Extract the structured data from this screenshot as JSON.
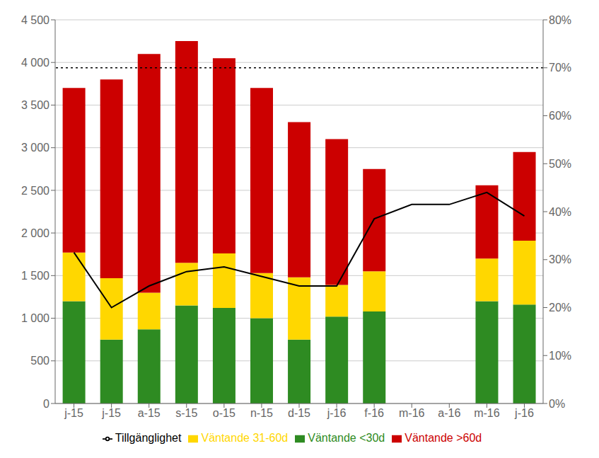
{
  "chart_data": {
    "type": "bar",
    "stacked": true,
    "categories": [
      "j-15",
      "j-15",
      "a-15",
      "s-15",
      "o-15",
      "n-15",
      "d-15",
      "j-16",
      "f-16",
      "m-16",
      "a-16",
      "m-16",
      "j-16"
    ],
    "series": [
      {
        "name": "Väntande <30d",
        "color": "#2E8B22",
        "values": [
          1200,
          750,
          870,
          1150,
          1120,
          1000,
          750,
          1020,
          1080,
          0,
          0,
          1200,
          1160
        ]
      },
      {
        "name": "Väntande 31-60d",
        "color": "#FFD700",
        "values": [
          570,
          720,
          430,
          500,
          640,
          530,
          730,
          370,
          470,
          0,
          0,
          500,
          750
        ]
      },
      {
        "name": "Väntande >60d",
        "color": "#CC0000",
        "values": [
          1930,
          2330,
          2800,
          2600,
          2290,
          2170,
          1820,
          1710,
          1200,
          0,
          0,
          860,
          1040
        ]
      },
      {
        "name": "Tillgänglighet",
        "type": "line",
        "axis": "y2",
        "color": "#000000",
        "values": [
          0.315,
          0.2,
          0.245,
          0.275,
          0.285,
          0.265,
          0.245,
          0.245,
          0.385,
          0.415,
          0.415,
          0.44,
          0.391
        ]
      }
    ],
    "ylim": [
      0,
      4500
    ],
    "yticks": [
      0,
      500,
      {
        "value": 1000,
        "label": "1 000"
      },
      {
        "value": 1500,
        "label": "1 500"
      },
      {
        "value": 2000,
        "label": "2 000"
      },
      {
        "value": 2500,
        "label": "2 500"
      },
      {
        "value": 3000,
        "label": "3 000"
      },
      {
        "value": 3500,
        "label": "3 500"
      },
      {
        "value": 4000,
        "label": "4 000"
      },
      {
        "value": 4500,
        "label": "4 500"
      }
    ],
    "y2lim": [
      0.0,
      0.8
    ],
    "y2ticks": [
      {
        "value": 0.0,
        "label": "0%"
      },
      {
        "value": 0.1,
        "label": "10%"
      },
      {
        "value": 0.2,
        "label": "20%"
      },
      {
        "value": 0.3,
        "label": "30%"
      },
      {
        "value": 0.4,
        "label": "40%"
      },
      {
        "value": 0.5,
        "label": "50%"
      },
      {
        "value": 0.6,
        "label": "60%"
      },
      {
        "value": 0.7,
        "label": "70%"
      },
      {
        "value": 0.8,
        "label": "80%"
      }
    ],
    "hlines": [
      {
        "value": 0.7,
        "axis": "y2",
        "color": "#000000",
        "line_style": "dashed"
      }
    ],
    "grid": true,
    "legend": "bottom"
  }
}
